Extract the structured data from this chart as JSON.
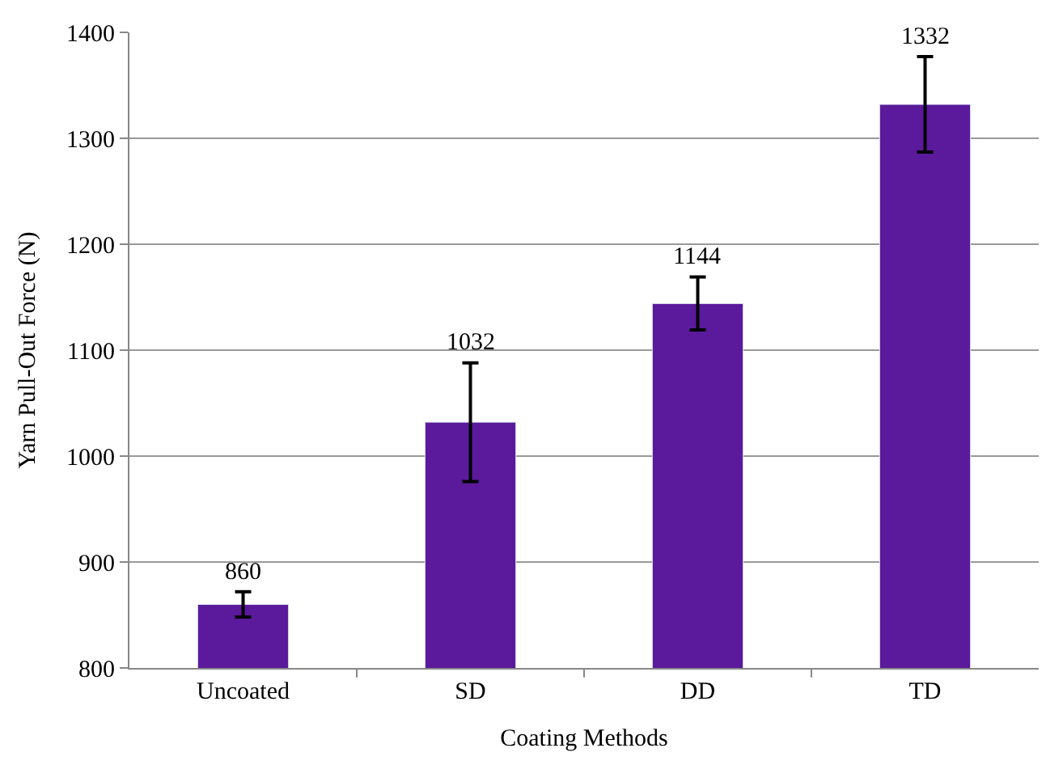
{
  "chart_data": {
    "type": "bar",
    "xlabel": "Coating Methods",
    "ylabel": "Yarn Pull-Out Force (N)",
    "categories": [
      "Uncoated",
      "SD",
      "DD",
      "TD"
    ],
    "values": [
      860,
      1032,
      1144,
      1332
    ],
    "errors": [
      12,
      56,
      25,
      45
    ],
    "color": "#5a1a9b",
    "ylim": [
      800,
      1400
    ],
    "yticks": [
      800,
      900,
      1000,
      1100,
      1200,
      1300,
      1400
    ],
    "grid": "y",
    "data_labels": true,
    "legend": false
  }
}
